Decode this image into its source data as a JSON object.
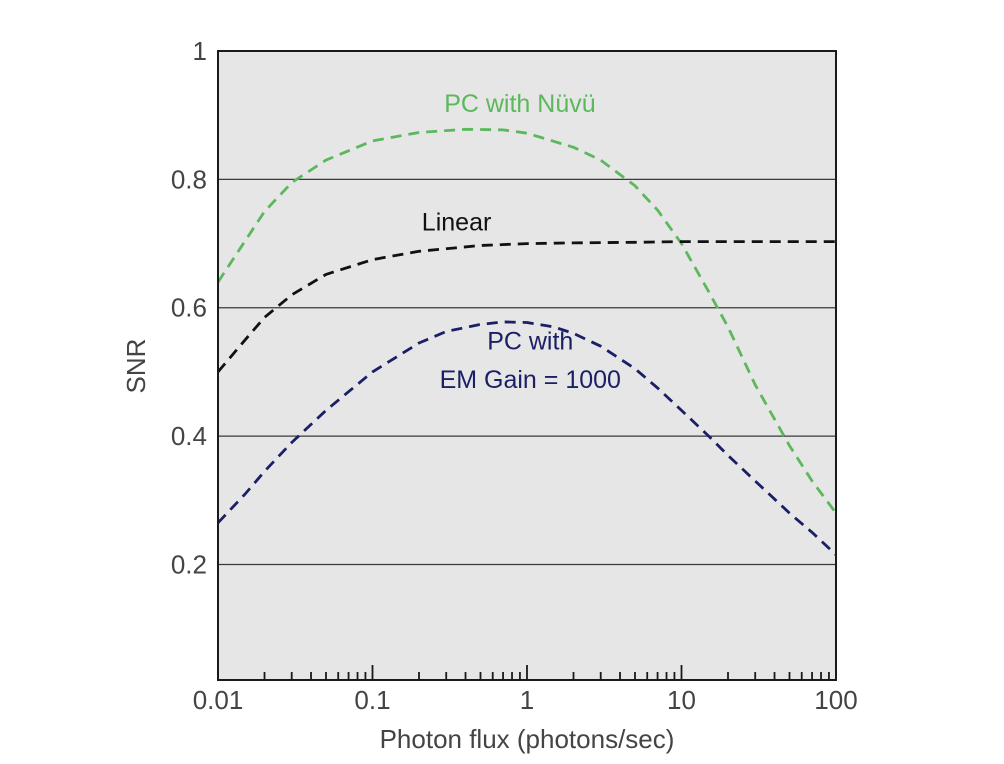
{
  "chart_data": {
    "type": "line",
    "xlabel": "Photon flux (photons/sec)",
    "ylabel": "SNR",
    "x_scale": "log",
    "xlim": [
      0.01,
      100
    ],
    "ylim": [
      0.02,
      1
    ],
    "x_ticks": [
      {
        "value": 0.01,
        "label": "0.01"
      },
      {
        "value": 0.1,
        "label": "0.1"
      },
      {
        "value": 1,
        "label": "1"
      },
      {
        "value": 10,
        "label": "10"
      },
      {
        "value": 100,
        "label": "100"
      }
    ],
    "y_ticks": [
      {
        "value": 0.2,
        "label": "0.2"
      },
      {
        "value": 0.4,
        "label": "0.4"
      },
      {
        "value": 0.6,
        "label": "0.6"
      },
      {
        "value": 0.8,
        "label": "0.8"
      },
      {
        "value": 1,
        "label": "1"
      }
    ],
    "grid": "horizontal",
    "background": "#e6e6e6",
    "series": [
      {
        "name": "PC with Nüvü",
        "color": "#5cb85c",
        "style": "dashed",
        "x": [
          0.01,
          0.02,
          0.03,
          0.05,
          0.1,
          0.2,
          0.4,
          0.7,
          1,
          2,
          3,
          5,
          7,
          10,
          15,
          20,
          30,
          50,
          70,
          100
        ],
        "y": [
          0.64,
          0.75,
          0.795,
          0.83,
          0.86,
          0.873,
          0.878,
          0.877,
          0.872,
          0.85,
          0.83,
          0.79,
          0.752,
          0.7,
          0.625,
          0.57,
          0.48,
          0.385,
          0.33,
          0.28
        ]
      },
      {
        "name": "Linear",
        "color": "#111111",
        "style": "dashed",
        "x": [
          0.01,
          0.015,
          0.02,
          0.03,
          0.05,
          0.1,
          0.2,
          0.5,
          1,
          2,
          5,
          10,
          20,
          50,
          100
        ],
        "y": [
          0.5,
          0.55,
          0.585,
          0.62,
          0.652,
          0.675,
          0.688,
          0.697,
          0.7,
          0.701,
          0.702,
          0.703,
          0.703,
          0.703,
          0.703
        ]
      },
      {
        "name": "PC with EM Gain = 1000",
        "color": "#1a1f66",
        "style": "dashed",
        "x": [
          0.01,
          0.015,
          0.02,
          0.03,
          0.05,
          0.1,
          0.2,
          0.3,
          0.5,
          0.7,
          1,
          1.5,
          2,
          3,
          5,
          7,
          10,
          15,
          20,
          30,
          50,
          70,
          100
        ],
        "y": [
          0.265,
          0.31,
          0.345,
          0.39,
          0.44,
          0.5,
          0.545,
          0.563,
          0.574,
          0.578,
          0.577,
          0.57,
          0.56,
          0.54,
          0.505,
          0.475,
          0.44,
          0.4,
          0.37,
          0.33,
          0.28,
          0.25,
          0.215
        ]
      }
    ],
    "annotations": [
      {
        "text": "PC with Nüvü",
        "color": "#5cb85c",
        "x": 0.9,
        "y": 0.905
      },
      {
        "text": "Linear",
        "color": "#111111",
        "x": 0.35,
        "y": 0.72
      },
      {
        "text": "PC with",
        "color": "#1a1f66",
        "x": 1.05,
        "y": 0.535
      },
      {
        "text": "EM Gain = 1000",
        "color": "#1a1f66",
        "x": 1.05,
        "y": 0.475
      }
    ]
  }
}
